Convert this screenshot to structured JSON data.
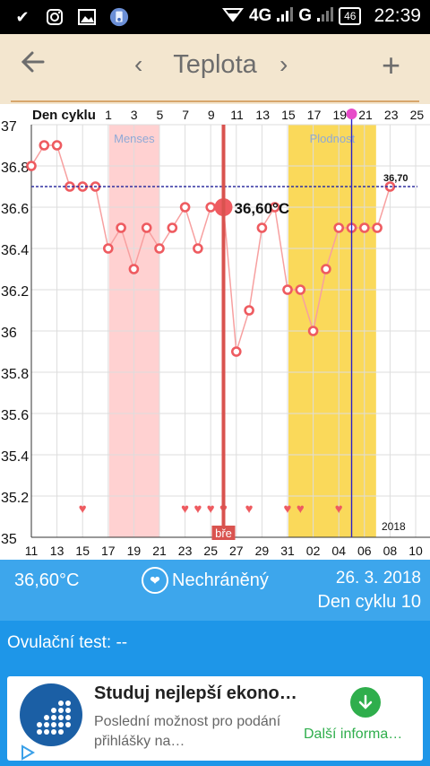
{
  "status_bar": {
    "network": "4G",
    "network2": "G",
    "battery": "46",
    "time": "22:39",
    "icons": [
      "check-icon",
      "instagram-icon",
      "gallery-icon",
      "app-icon"
    ]
  },
  "app_bar": {
    "back_icon": "back-arrow-icon",
    "prev_glyph": "‹",
    "title": "Teplota",
    "next_glyph": "›",
    "add_glyph": "+"
  },
  "chart": {
    "header_label": "Den cyklu",
    "cycle_days": [
      "1",
      "3",
      "5",
      "7",
      "9",
      "11",
      "13",
      "15",
      "17",
      "19",
      "21",
      "23",
      "25"
    ],
    "y_ticks": [
      "37",
      "36.8",
      "36.6",
      "36.4",
      "36.2",
      "36",
      "35.8",
      "35.6",
      "35.4",
      "35.2",
      "35"
    ],
    "x_dates": [
      "11",
      "13",
      "15",
      "17",
      "19",
      "21",
      "23",
      "25",
      "27",
      "29",
      "31",
      "02",
      "04",
      "06",
      "08",
      "10"
    ],
    "menses_label": "Menses",
    "fertile_label": "Plodnost",
    "coverline_label": "36,70",
    "selected_label": "36,60°C",
    "today_tag": "bře",
    "year_label": "2018",
    "colors": {
      "menses": "#ffd1d1",
      "fertile": "#fad95a",
      "line": "#f7a0a0",
      "point": "#ee5b60",
      "selected_line": "#d9534f",
      "today_line": "#2a22c8",
      "coverline": "#3030a0"
    }
  },
  "chart_data": {
    "type": "line",
    "x": [
      11,
      12,
      13,
      14,
      15,
      16,
      17,
      18,
      19,
      20,
      21,
      22,
      23,
      24,
      25,
      26,
      27,
      28,
      29,
      30,
      31,
      1,
      2,
      3,
      4,
      5,
      6,
      7,
      8
    ],
    "values": [
      36.8,
      36.9,
      36.9,
      36.7,
      36.7,
      36.7,
      36.4,
      36.5,
      36.3,
      36.5,
      36.4,
      36.5,
      36.6,
      36.4,
      36.6,
      36.6,
      35.9,
      36.1,
      36.5,
      36.6,
      36.2,
      36.2,
      36.0,
      36.3,
      36.5,
      36.5,
      36.5,
      36.5,
      36.7
    ],
    "hearts_x": [
      15,
      23,
      24,
      25,
      26,
      28,
      31,
      1,
      4
    ],
    "ylim": [
      35,
      37
    ],
    "selected": {
      "x": 26,
      "value": 36.6
    },
    "coverline": 36.7,
    "menses_range": [
      17,
      21
    ],
    "fertile_range": [
      31,
      6
    ],
    "today_x": 5
  },
  "info": {
    "temperature": "36,60°C",
    "protection": "Nechráněný",
    "date": "26. 3. 2018",
    "cycle_day": "Den cyklu 10"
  },
  "ovulation": {
    "label": "Ovulační test: --"
  },
  "ad": {
    "title": "Studuj nejlepší ekono…",
    "description": "Poslední možnost pro podání přihlášky na…",
    "cta": "Další informa…"
  }
}
